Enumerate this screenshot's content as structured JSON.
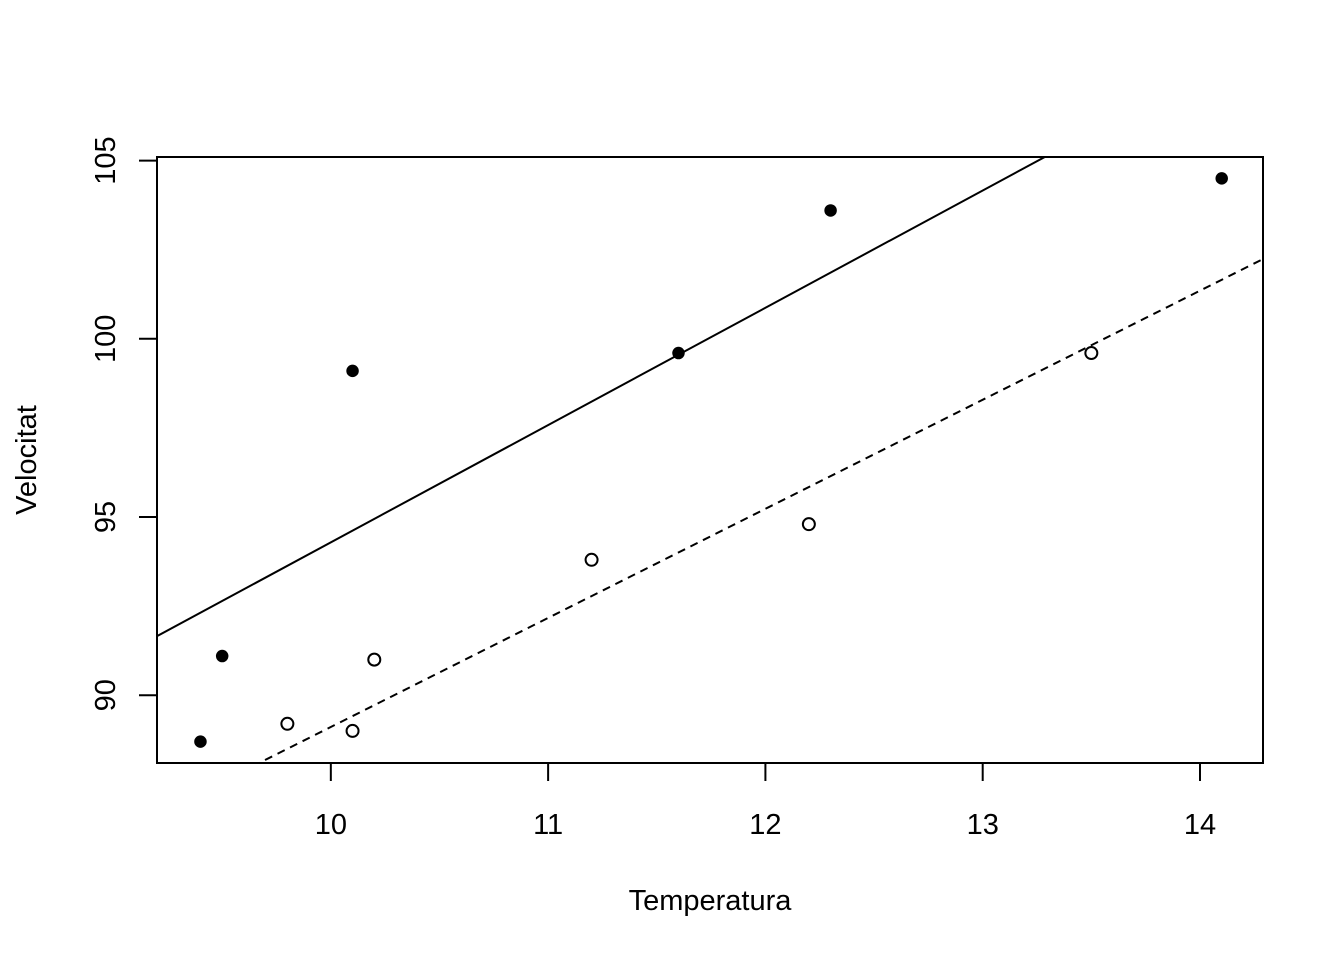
{
  "chart_data": {
    "type": "scatter",
    "title": "",
    "xlabel": "Temperatura",
    "ylabel": "Velocitat",
    "xlim": [
      9.2,
      14.29
    ],
    "ylim": [
      88.1,
      105.1
    ],
    "x_ticks": [
      10,
      11,
      12,
      13,
      14
    ],
    "y_ticks": [
      90,
      95,
      100,
      105
    ],
    "grid": false,
    "legend": "none",
    "series": [
      {
        "marker": "filled-circle",
        "points": [
          {
            "x": 9.4,
            "y": 88.7
          },
          {
            "x": 9.5,
            "y": 91.1
          },
          {
            "x": 10.1,
            "y": 99.1
          },
          {
            "x": 11.6,
            "y": 99.6
          },
          {
            "x": 12.3,
            "y": 103.6
          },
          {
            "x": 14.1,
            "y": 104.5
          }
        ],
        "fit_line": {
          "style": "solid",
          "intercept": 61.39,
          "slope": 3.29
        }
      },
      {
        "marker": "open-circle",
        "points": [
          {
            "x": 9.8,
            "y": 89.2
          },
          {
            "x": 10.1,
            "y": 89.0
          },
          {
            "x": 10.2,
            "y": 91.0
          },
          {
            "x": 11.2,
            "y": 93.8
          },
          {
            "x": 12.2,
            "y": 94.8
          },
          {
            "x": 13.5,
            "y": 99.6
          }
        ],
        "fit_line": {
          "style": "dashed",
          "intercept": 58.51,
          "slope": 3.06
        }
      }
    ]
  }
}
